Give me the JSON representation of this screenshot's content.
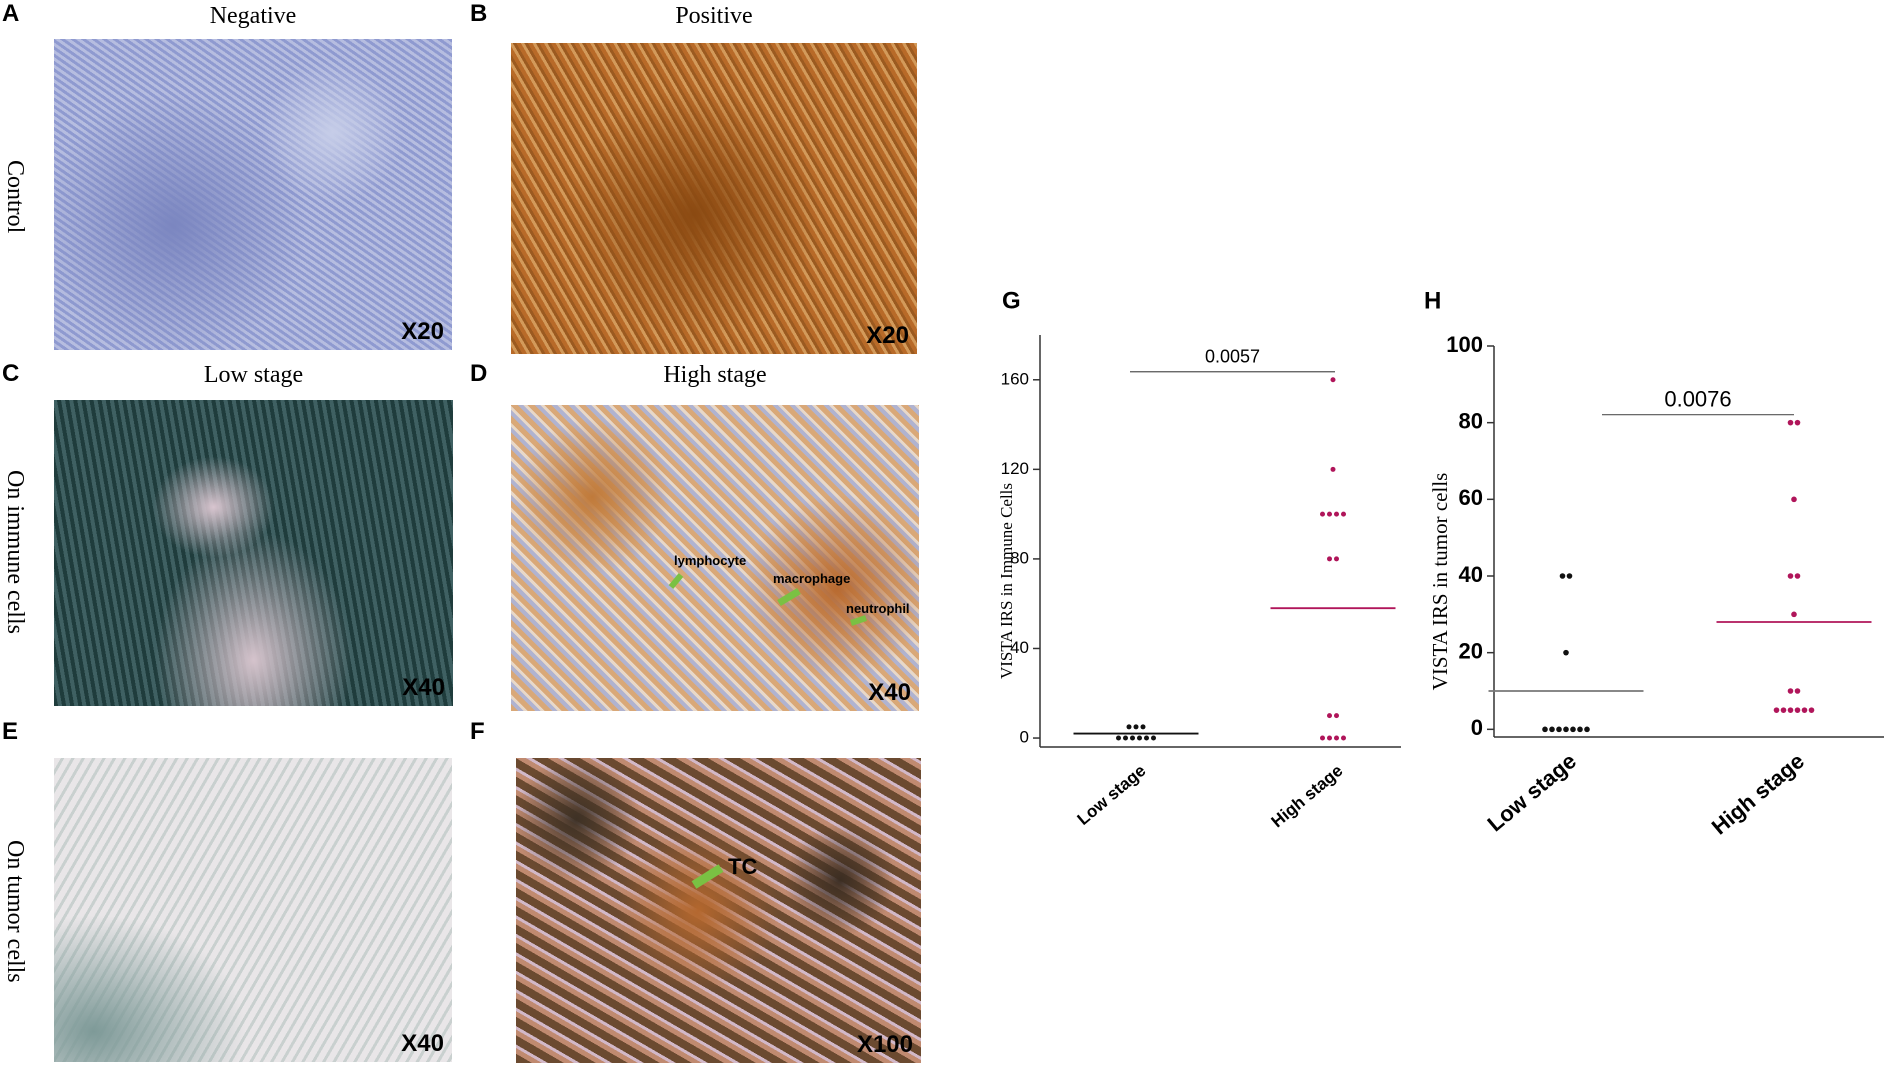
{
  "panels": [
    {
      "letter": "A",
      "title": "Negative",
      "magnification": "X20"
    },
    {
      "letter": "B",
      "title": "Positive",
      "magnification": "X20"
    },
    {
      "letter": "C",
      "title": "Low stage",
      "magnification": "X40"
    },
    {
      "letter": "D",
      "title": "High stage",
      "magnification": "X40",
      "labels": [
        "lymphocyte",
        "macrophage",
        "neutrophil"
      ]
    },
    {
      "letter": "E",
      "magnification": "X40"
    },
    {
      "letter": "F",
      "magnification": "X100",
      "labels": [
        "TC"
      ]
    }
  ],
  "row_labels": [
    "Control",
    "On immune cells",
    "On tumor cells"
  ],
  "chart_data": [
    {
      "type": "dot",
      "letter": "G",
      "ylabel": "VISTA IRS in Immune Cells",
      "categories": [
        "Low stage",
        "High stage"
      ],
      "colors": [
        "#111111",
        "#b0155a"
      ],
      "points": [
        [
          5,
          5,
          5,
          0,
          0,
          0,
          0,
          0,
          0
        ],
        [
          160,
          120,
          100,
          100,
          100,
          100,
          80,
          80,
          10,
          10,
          0,
          0,
          0,
          0
        ]
      ],
      "medians": [
        2,
        58
      ],
      "median_colors": [
        "#111111",
        "#b0155a"
      ],
      "annotation": "0.0057",
      "ylim": [
        -4,
        180
      ],
      "yticks": [
        0,
        40,
        80,
        120,
        160
      ]
    },
    {
      "type": "dot",
      "letter": "H",
      "ylabel": "VISTA IRS in tumor cells",
      "categories": [
        "Low stage",
        "High stage"
      ],
      "colors": [
        "#111111",
        "#b0155a"
      ],
      "points": [
        [
          40,
          40,
          20,
          0,
          0,
          0,
          0,
          0,
          0,
          0
        ],
        [
          80,
          80,
          60,
          40,
          40,
          30,
          10,
          10,
          5,
          5,
          5,
          5,
          5,
          5
        ]
      ],
      "medians": [
        10,
        28
      ],
      "median_colors": [
        "#777777",
        "#b0155a"
      ],
      "annotation": "0.0076",
      "ylim": [
        -2,
        100
      ],
      "yticks": [
        0,
        20,
        40,
        60,
        80,
        100
      ]
    }
  ]
}
